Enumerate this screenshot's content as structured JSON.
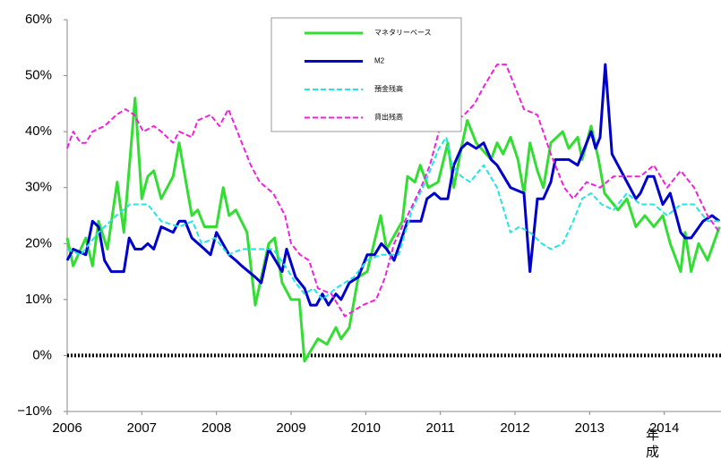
{
  "chart_data": {
    "type": "line",
    "xlabel": "年成",
    "xlim": [
      2006,
      2014.76
    ],
    "xticks": [
      2006,
      2007,
      2008,
      2009,
      2010,
      2011,
      2012,
      2013,
      2014
    ],
    "ylim": [
      -10,
      60
    ],
    "yticks": [
      {
        "value": 60,
        "label": "60%"
      },
      {
        "value": 50,
        "label": "50%"
      },
      {
        "value": 40,
        "label": "40%"
      },
      {
        "value": 30,
        "label": "30%"
      },
      {
        "value": 20,
        "label": "20%"
      },
      {
        "value": 10,
        "label": "10%"
      },
      {
        "value": 0,
        "label": "0%"
      },
      {
        "value": -10,
        "label": "−10%"
      }
    ],
    "grid": false,
    "series": [
      {
        "name": "マネタリーベース",
        "color": "#33dd33",
        "dashed": false,
        "x": [
          2006.0,
          2006.08,
          2006.25,
          2006.34,
          2006.42,
          2006.54,
          2006.67,
          2006.76,
          2006.91,
          2007.0,
          2007.08,
          2007.16,
          2007.26,
          2007.42,
          2007.5,
          2007.67,
          2007.75,
          2007.84,
          2008.0,
          2008.09,
          2008.17,
          2008.26,
          2008.41,
          2008.52,
          2008.7,
          2008.78,
          2008.88,
          2009.0,
          2009.11,
          2009.18,
          2009.36,
          2009.48,
          2009.6,
          2009.67,
          2009.78,
          2009.9,
          2010.02,
          2010.2,
          2010.28,
          2010.49,
          2010.56,
          2010.66,
          2010.73,
          2010.84,
          2010.97,
          2011.1,
          2011.18,
          2011.28,
          2011.36,
          2011.48,
          2011.68,
          2011.76,
          2011.84,
          2011.94,
          2012.04,
          2012.12,
          2012.2,
          2012.3,
          2012.38,
          2012.48,
          2012.64,
          2012.72,
          2012.84,
          2012.9,
          2013.02,
          2013.12,
          2013.2,
          2013.38,
          2013.5,
          2013.62,
          2013.74,
          2013.86,
          2013.98,
          2014.08,
          2014.22,
          2014.28,
          2014.36,
          2014.46,
          2014.58,
          2014.74
        ],
        "values": [
          21,
          16,
          21,
          16,
          24,
          19,
          31,
          22,
          46,
          28,
          32,
          33,
          28,
          32,
          38,
          25,
          26,
          23,
          23,
          30,
          25,
          26,
          22,
          9,
          20,
          21,
          13,
          10,
          10,
          -1,
          3,
          2,
          5,
          3,
          5,
          14,
          15,
          25,
          19,
          24,
          32,
          31,
          34,
          30,
          31,
          38,
          30,
          37,
          42,
          38,
          35,
          38,
          36,
          39,
          35,
          29,
          38,
          33,
          30,
          38,
          40,
          37,
          39,
          35,
          41,
          35,
          29,
          26,
          28,
          23,
          25,
          23,
          25,
          20,
          15,
          22,
          15,
          20,
          17,
          23
        ]
      },
      {
        "name": "M2",
        "color": "#0000cc",
        "dashed": false,
        "x": [
          2006.0,
          2006.08,
          2006.25,
          2006.34,
          2006.42,
          2006.5,
          2006.59,
          2006.76,
          2006.83,
          2006.91,
          2007.0,
          2007.08,
          2007.16,
          2007.26,
          2007.42,
          2007.5,
          2007.58,
          2007.67,
          2007.84,
          2007.92,
          2008.0,
          2008.17,
          2008.26,
          2008.34,
          2008.52,
          2008.6,
          2008.7,
          2008.88,
          2008.94,
          2009.06,
          2009.18,
          2009.26,
          2009.34,
          2009.42,
          2009.5,
          2009.6,
          2009.67,
          2009.78,
          2009.9,
          2010.02,
          2010.12,
          2010.21,
          2010.28,
          2010.38,
          2010.56,
          2010.74,
          2010.82,
          2010.92,
          2011.0,
          2011.1,
          2011.18,
          2011.28,
          2011.36,
          2011.48,
          2011.58,
          2011.68,
          2011.76,
          2011.94,
          2012.12,
          2012.2,
          2012.3,
          2012.38,
          2012.48,
          2012.54,
          2012.72,
          2012.84,
          2012.96,
          2013.02,
          2013.08,
          2013.14,
          2013.21,
          2013.3,
          2013.38,
          2013.5,
          2013.62,
          2013.68,
          2013.78,
          2013.86,
          2013.98,
          2014.08,
          2014.22,
          2014.28,
          2014.36,
          2014.52,
          2014.64,
          2014.74
        ],
        "values": [
          17,
          19,
          18,
          24,
          23,
          17,
          15,
          15,
          21,
          19,
          19,
          20,
          19,
          23,
          22,
          24,
          24,
          21,
          19,
          18,
          22,
          18,
          17,
          16,
          14,
          13,
          19,
          15,
          19,
          14,
          12,
          9,
          9,
          11,
          9,
          11,
          10,
          13,
          14,
          18,
          18,
          20,
          19,
          17,
          24,
          24,
          28,
          29,
          28,
          28,
          34,
          37,
          38,
          37,
          38,
          35,
          34,
          30,
          29,
          15,
          28,
          28,
          31,
          35,
          35,
          34,
          38,
          40,
          37,
          39,
          52,
          36,
          34,
          31,
          28,
          29,
          32,
          32,
          27,
          29,
          22,
          21,
          21,
          24,
          25,
          24
        ]
      },
      {
        "name": "預金残高",
        "color": "#22e5e5",
        "dashed": true,
        "x": [
          2006.0,
          2006.18,
          2006.42,
          2006.66,
          2006.84,
          2007.08,
          2007.26,
          2007.5,
          2007.68,
          2007.8,
          2007.98,
          2008.16,
          2008.34,
          2008.58,
          2008.76,
          2008.92,
          2009.06,
          2009.18,
          2009.3,
          2009.42,
          2009.6,
          2009.84,
          2010.02,
          2010.2,
          2010.44,
          2010.62,
          2010.8,
          2010.98,
          2011.08,
          2011.16,
          2011.28,
          2011.4,
          2011.58,
          2011.76,
          2011.94,
          2012.06,
          2012.2,
          2012.36,
          2012.48,
          2012.64,
          2012.78,
          2012.9,
          2013.02,
          2013.16,
          2013.32,
          2013.5,
          2013.68,
          2013.86,
          2014.04,
          2014.22,
          2014.4,
          2014.58,
          2014.74
        ],
        "values": [
          19,
          18,
          22,
          25,
          27,
          27,
          24,
          23,
          24,
          20,
          21,
          18,
          19,
          19,
          19,
          16,
          13,
          11,
          12,
          10,
          12,
          14,
          17,
          18,
          18,
          26,
          31,
          37,
          39,
          34,
          32,
          31,
          34,
          30,
          22,
          23,
          22,
          20,
          19,
          20,
          24,
          28,
          29,
          27,
          26,
          29,
          27,
          27,
          25,
          27,
          27,
          24,
          24
        ]
      },
      {
        "name": "貸出残高",
        "color": "#ee22dd",
        "dashed": true,
        "x": [
          2006.0,
          2006.08,
          2006.18,
          2006.25,
          2006.34,
          2006.5,
          2006.66,
          2006.78,
          2006.9,
          2007.02,
          2007.16,
          2007.26,
          2007.42,
          2007.5,
          2007.67,
          2007.75,
          2007.92,
          2008.04,
          2008.16,
          2008.28,
          2008.46,
          2008.58,
          2008.76,
          2008.92,
          2009.0,
          2009.12,
          2009.24,
          2009.36,
          2009.54,
          2009.72,
          2009.84,
          2009.96,
          2010.14,
          2010.26,
          2010.38,
          2010.56,
          2010.74,
          2010.86,
          2010.98,
          2011.1,
          2011.22,
          2011.32,
          2011.46,
          2011.58,
          2011.76,
          2011.88,
          2012.0,
          2012.12,
          2012.3,
          2012.48,
          2012.66,
          2012.78,
          2012.96,
          2013.14,
          2013.32,
          2013.5,
          2013.68,
          2013.86,
          2014.04,
          2014.22,
          2014.4,
          2014.58,
          2014.74
        ],
        "values": [
          37,
          40,
          38,
          38,
          40,
          41,
          43,
          44,
          43,
          40,
          41,
          40,
          38,
          40,
          39,
          42,
          43,
          41,
          44,
          40,
          34,
          31,
          29,
          25,
          20,
          18,
          17,
          12,
          11,
          7,
          8,
          9,
          10,
          14,
          20,
          25,
          30,
          34,
          40,
          41,
          42,
          43,
          45,
          48,
          52,
          52,
          48,
          44,
          43,
          36,
          30,
          28,
          31,
          30,
          32,
          32,
          32,
          34,
          30,
          33,
          30,
          25,
          22
        ]
      }
    ]
  }
}
